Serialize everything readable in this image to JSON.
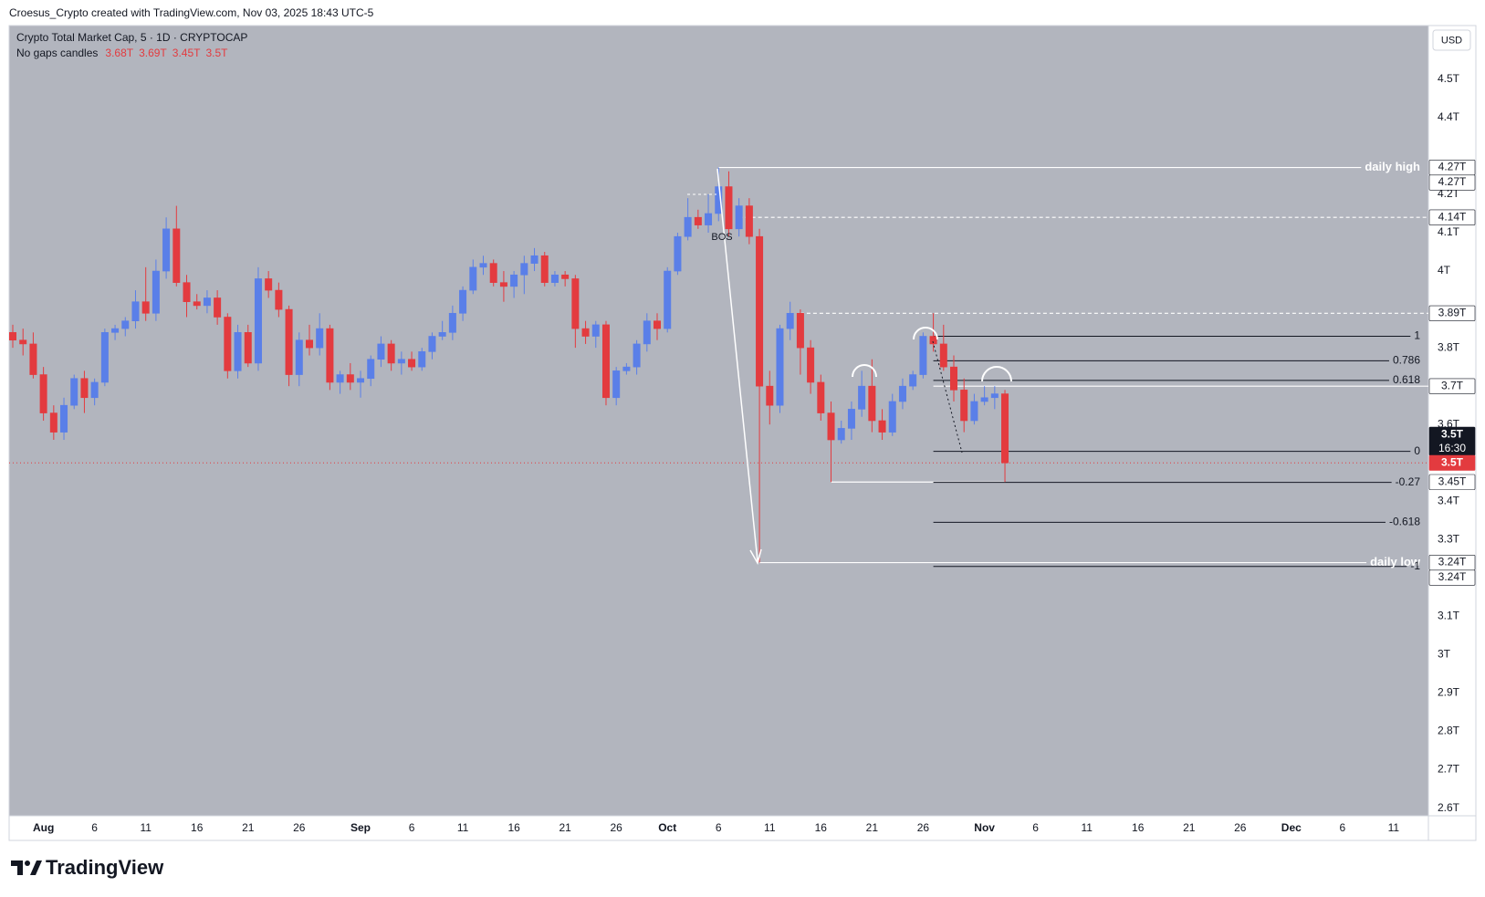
{
  "header": {
    "credit": "Croesus_Crypto created with TradingView.com, Nov 03, 2025 18:43 UTC-5",
    "logo": "TradingView"
  },
  "chart_data": {
    "type": "candlestick",
    "title": "Crypto Total Market Cap, 5 · 1D · CRYPTOCAP",
    "indicator": "No gaps candles",
    "ohlc_labels": [
      "3.68T",
      "3.69T",
      "3.45T",
      "3.5T"
    ],
    "currency": "USD",
    "up_color": "#5a7fe8",
    "down_color": "#e33b3f",
    "background": "#b2b5be",
    "grid": false,
    "xlim": [
      "2025-07-29",
      "2025-12-14"
    ],
    "xticks": [
      {
        "value": "2025-08-01",
        "label": "Aug"
      },
      {
        "value": "2025-08-06",
        "label": "6"
      },
      {
        "value": "2025-08-11",
        "label": "11"
      },
      {
        "value": "2025-08-16",
        "label": "16"
      },
      {
        "value": "2025-08-21",
        "label": "21"
      },
      {
        "value": "2025-08-26",
        "label": "26"
      },
      {
        "value": "2025-09-01",
        "label": "Sep"
      },
      {
        "value": "2025-09-06",
        "label": "6"
      },
      {
        "value": "2025-09-11",
        "label": "11"
      },
      {
        "value": "2025-09-16",
        "label": "16"
      },
      {
        "value": "2025-09-21",
        "label": "21"
      },
      {
        "value": "2025-09-26",
        "label": "26"
      },
      {
        "value": "2025-10-01",
        "label": "Oct"
      },
      {
        "value": "2025-10-06",
        "label": "6"
      },
      {
        "value": "2025-10-11",
        "label": "11"
      },
      {
        "value": "2025-10-16",
        "label": "16"
      },
      {
        "value": "2025-10-21",
        "label": "21"
      },
      {
        "value": "2025-10-26",
        "label": "26"
      },
      {
        "value": "2025-11-01",
        "label": "Nov"
      },
      {
        "value": "2025-11-06",
        "label": "6"
      },
      {
        "value": "2025-11-11",
        "label": "11"
      },
      {
        "value": "2025-11-16",
        "label": "16"
      },
      {
        "value": "2025-11-21",
        "label": "21"
      },
      {
        "value": "2025-11-26",
        "label": "26"
      },
      {
        "value": "2025-12-01",
        "label": "Dec"
      },
      {
        "value": "2025-12-06",
        "label": "6"
      },
      {
        "value": "2025-12-11",
        "label": "11"
      }
    ],
    "ylim": [
      2.58,
      4.64
    ],
    "yticks": [
      {
        "value": 4.5,
        "label": "4.5T"
      },
      {
        "value": 4.4,
        "label": "4.4T"
      },
      {
        "value": 4.2,
        "label": "4.2T"
      },
      {
        "value": 4.1,
        "label": "4.1T"
      },
      {
        "value": 4,
        "label": "4T"
      },
      {
        "value": 3.8,
        "label": "3.8T"
      },
      {
        "value": 3.6,
        "label": "3.6T"
      },
      {
        "value": 3.4,
        "label": "3.4T"
      },
      {
        "value": 3.3,
        "label": "3.3T"
      },
      {
        "value": 3.1,
        "label": "3.1T"
      },
      {
        "value": 3,
        "label": "3T"
      },
      {
        "value": 2.9,
        "label": "2.9T"
      },
      {
        "value": 2.8,
        "label": "2.8T"
      },
      {
        "value": 2.7,
        "label": "2.7T"
      },
      {
        "value": 2.6,
        "label": "2.6T"
      }
    ],
    "candles": [
      {
        "x": "2025-07-29",
        "open": 3.84,
        "high": 3.86,
        "low": 3.8,
        "close": 3.82
      },
      {
        "x": "2025-07-30",
        "open": 3.82,
        "high": 3.85,
        "low": 3.78,
        "close": 3.81
      },
      {
        "x": "2025-07-31",
        "open": 3.81,
        "high": 3.84,
        "low": 3.72,
        "close": 3.73
      },
      {
        "x": "2025-08-01",
        "open": 3.73,
        "high": 3.75,
        "low": 3.61,
        "close": 3.63
      },
      {
        "x": "2025-08-02",
        "open": 3.63,
        "high": 3.65,
        "low": 3.56,
        "close": 3.58
      },
      {
        "x": "2025-08-03",
        "open": 3.58,
        "high": 3.67,
        "low": 3.56,
        "close": 3.65
      },
      {
        "x": "2025-08-04",
        "open": 3.65,
        "high": 3.73,
        "low": 3.64,
        "close": 3.72
      },
      {
        "x": "2025-08-05",
        "open": 3.72,
        "high": 3.74,
        "low": 3.63,
        "close": 3.67
      },
      {
        "x": "2025-08-06",
        "open": 3.67,
        "high": 3.72,
        "low": 3.65,
        "close": 3.71
      },
      {
        "x": "2025-08-07",
        "open": 3.71,
        "high": 3.85,
        "low": 3.7,
        "close": 3.84
      },
      {
        "x": "2025-08-08",
        "open": 3.84,
        "high": 3.86,
        "low": 3.82,
        "close": 3.85
      },
      {
        "x": "2025-08-09",
        "open": 3.85,
        "high": 3.88,
        "low": 3.83,
        "close": 3.87
      },
      {
        "x": "2025-08-10",
        "open": 3.87,
        "high": 3.95,
        "low": 3.85,
        "close": 3.92
      },
      {
        "x": "2025-08-11",
        "open": 3.92,
        "high": 4.01,
        "low": 3.87,
        "close": 3.89
      },
      {
        "x": "2025-08-12",
        "open": 3.89,
        "high": 4.03,
        "low": 3.87,
        "close": 4.0
      },
      {
        "x": "2025-08-13",
        "open": 4.0,
        "high": 4.14,
        "low": 3.98,
        "close": 4.11
      },
      {
        "x": "2025-08-14",
        "open": 4.11,
        "high": 4.17,
        "low": 3.96,
        "close": 3.97
      },
      {
        "x": "2025-08-15",
        "open": 3.97,
        "high": 3.99,
        "low": 3.88,
        "close": 3.92
      },
      {
        "x": "2025-08-16",
        "open": 3.92,
        "high": 3.94,
        "low": 3.9,
        "close": 3.91
      },
      {
        "x": "2025-08-17",
        "open": 3.91,
        "high": 3.95,
        "low": 3.89,
        "close": 3.93
      },
      {
        "x": "2025-08-18",
        "open": 3.93,
        "high": 3.95,
        "low": 3.86,
        "close": 3.88
      },
      {
        "x": "2025-08-19",
        "open": 3.88,
        "high": 3.89,
        "low": 3.72,
        "close": 3.74
      },
      {
        "x": "2025-08-20",
        "open": 3.74,
        "high": 3.86,
        "low": 3.72,
        "close": 3.84
      },
      {
        "x": "2025-08-21",
        "open": 3.84,
        "high": 3.86,
        "low": 3.75,
        "close": 3.76
      },
      {
        "x": "2025-08-22",
        "open": 3.76,
        "high": 4.01,
        "low": 3.74,
        "close": 3.98
      },
      {
        "x": "2025-08-23",
        "open": 3.98,
        "high": 4.0,
        "low": 3.93,
        "close": 3.95
      },
      {
        "x": "2025-08-24",
        "open": 3.95,
        "high": 3.97,
        "low": 3.88,
        "close": 3.9
      },
      {
        "x": "2025-08-25",
        "open": 3.9,
        "high": 3.91,
        "low": 3.7,
        "close": 3.73
      },
      {
        "x": "2025-08-26",
        "open": 3.73,
        "high": 3.84,
        "low": 3.7,
        "close": 3.82
      },
      {
        "x": "2025-08-27",
        "open": 3.82,
        "high": 3.86,
        "low": 3.78,
        "close": 3.8
      },
      {
        "x": "2025-08-28",
        "open": 3.8,
        "high": 3.89,
        "low": 3.78,
        "close": 3.85
      },
      {
        "x": "2025-08-29",
        "open": 3.85,
        "high": 3.86,
        "low": 3.69,
        "close": 3.71
      },
      {
        "x": "2025-08-30",
        "open": 3.71,
        "high": 3.74,
        "low": 3.68,
        "close": 3.73
      },
      {
        "x": "2025-08-31",
        "open": 3.73,
        "high": 3.76,
        "low": 3.69,
        "close": 3.71
      },
      {
        "x": "2025-09-01",
        "open": 3.71,
        "high": 3.74,
        "low": 3.67,
        "close": 3.72
      },
      {
        "x": "2025-09-02",
        "open": 3.72,
        "high": 3.78,
        "low": 3.7,
        "close": 3.77
      },
      {
        "x": "2025-09-03",
        "open": 3.77,
        "high": 3.83,
        "low": 3.75,
        "close": 3.81
      },
      {
        "x": "2025-09-04",
        "open": 3.81,
        "high": 3.82,
        "low": 3.74,
        "close": 3.76
      },
      {
        "x": "2025-09-05",
        "open": 3.76,
        "high": 3.79,
        "low": 3.73,
        "close": 3.77
      },
      {
        "x": "2025-09-06",
        "open": 3.77,
        "high": 3.79,
        "low": 3.74,
        "close": 3.75
      },
      {
        "x": "2025-09-07",
        "open": 3.75,
        "high": 3.8,
        "low": 3.74,
        "close": 3.79
      },
      {
        "x": "2025-09-08",
        "open": 3.79,
        "high": 3.84,
        "low": 3.77,
        "close": 3.83
      },
      {
        "x": "2025-09-09",
        "open": 3.83,
        "high": 3.87,
        "low": 3.82,
        "close": 3.84
      },
      {
        "x": "2025-09-10",
        "open": 3.84,
        "high": 3.91,
        "low": 3.82,
        "close": 3.89
      },
      {
        "x": "2025-09-11",
        "open": 3.89,
        "high": 3.96,
        "low": 3.87,
        "close": 3.95
      },
      {
        "x": "2025-09-12",
        "open": 3.95,
        "high": 4.03,
        "low": 3.94,
        "close": 4.01
      },
      {
        "x": "2025-09-13",
        "open": 4.01,
        "high": 4.04,
        "low": 3.99,
        "close": 4.02
      },
      {
        "x": "2025-09-14",
        "open": 4.02,
        "high": 4.03,
        "low": 3.96,
        "close": 3.97
      },
      {
        "x": "2025-09-15",
        "open": 3.97,
        "high": 4.0,
        "low": 3.92,
        "close": 3.96
      },
      {
        "x": "2025-09-16",
        "open": 3.96,
        "high": 4.0,
        "low": 3.93,
        "close": 3.99
      },
      {
        "x": "2025-09-17",
        "open": 3.99,
        "high": 4.04,
        "low": 3.94,
        "close": 4.02
      },
      {
        "x": "2025-09-18",
        "open": 4.02,
        "high": 4.06,
        "low": 4.0,
        "close": 4.04
      },
      {
        "x": "2025-09-19",
        "open": 4.04,
        "high": 4.05,
        "low": 3.96,
        "close": 3.97
      },
      {
        "x": "2025-09-20",
        "open": 3.97,
        "high": 4.0,
        "low": 3.96,
        "close": 3.99
      },
      {
        "x": "2025-09-21",
        "open": 3.99,
        "high": 4.0,
        "low": 3.96,
        "close": 3.98
      },
      {
        "x": "2025-09-22",
        "open": 3.98,
        "high": 3.99,
        "low": 3.8,
        "close": 3.85
      },
      {
        "x": "2025-09-23",
        "open": 3.85,
        "high": 3.87,
        "low": 3.81,
        "close": 3.83
      },
      {
        "x": "2025-09-24",
        "open": 3.83,
        "high": 3.87,
        "low": 3.8,
        "close": 3.86
      },
      {
        "x": "2025-09-25",
        "open": 3.86,
        "high": 3.87,
        "low": 3.65,
        "close": 3.67
      },
      {
        "x": "2025-09-26",
        "open": 3.67,
        "high": 3.75,
        "low": 3.65,
        "close": 3.74
      },
      {
        "x": "2025-09-27",
        "open": 3.74,
        "high": 3.76,
        "low": 3.73,
        "close": 3.75
      },
      {
        "x": "2025-09-28",
        "open": 3.75,
        "high": 3.82,
        "low": 3.73,
        "close": 3.81
      },
      {
        "x": "2025-09-29",
        "open": 3.81,
        "high": 3.89,
        "low": 3.79,
        "close": 3.87
      },
      {
        "x": "2025-09-30",
        "open": 3.87,
        "high": 3.89,
        "low": 3.82,
        "close": 3.85
      },
      {
        "x": "2025-10-01",
        "open": 3.85,
        "high": 4.01,
        "low": 3.84,
        "close": 4.0
      },
      {
        "x": "2025-10-02",
        "open": 4.0,
        "high": 4.1,
        "low": 3.99,
        "close": 4.09
      },
      {
        "x": "2025-10-03",
        "open": 4.09,
        "high": 4.19,
        "low": 4.08,
        "close": 4.14
      },
      {
        "x": "2025-10-04",
        "open": 4.14,
        "high": 4.16,
        "low": 4.11,
        "close": 4.12
      },
      {
        "x": "2025-10-05",
        "open": 4.12,
        "high": 4.2,
        "low": 4.1,
        "close": 4.15
      },
      {
        "x": "2025-10-06",
        "open": 4.15,
        "high": 4.27,
        "low": 4.13,
        "close": 4.22
      },
      {
        "x": "2025-10-07",
        "open": 4.22,
        "high": 4.26,
        "low": 4.09,
        "close": 4.11
      },
      {
        "x": "2025-10-08",
        "open": 4.11,
        "high": 4.19,
        "low": 4.09,
        "close": 4.17
      },
      {
        "x": "2025-10-09",
        "open": 4.17,
        "high": 4.19,
        "low": 4.07,
        "close": 4.09
      },
      {
        "x": "2025-10-10",
        "open": 4.09,
        "high": 4.11,
        "low": 3.24,
        "close": 3.7
      },
      {
        "x": "2025-10-11",
        "open": 3.7,
        "high": 3.74,
        "low": 3.6,
        "close": 3.65
      },
      {
        "x": "2025-10-12",
        "open": 3.65,
        "high": 3.86,
        "low": 3.63,
        "close": 3.85
      },
      {
        "x": "2025-10-13",
        "open": 3.85,
        "high": 3.92,
        "low": 3.82,
        "close": 3.89
      },
      {
        "x": "2025-10-14",
        "open": 3.89,
        "high": 3.9,
        "low": 3.73,
        "close": 3.8
      },
      {
        "x": "2025-10-15",
        "open": 3.8,
        "high": 3.82,
        "low": 3.68,
        "close": 3.71
      },
      {
        "x": "2025-10-16",
        "open": 3.71,
        "high": 3.73,
        "low": 3.61,
        "close": 3.63
      },
      {
        "x": "2025-10-17",
        "open": 3.63,
        "high": 3.66,
        "low": 3.45,
        "close": 3.56
      },
      {
        "x": "2025-10-18",
        "open": 3.56,
        "high": 3.61,
        "low": 3.55,
        "close": 3.59
      },
      {
        "x": "2025-10-19",
        "open": 3.59,
        "high": 3.66,
        "low": 3.56,
        "close": 3.64
      },
      {
        "x": "2025-10-20",
        "open": 3.64,
        "high": 3.74,
        "low": 3.62,
        "close": 3.7
      },
      {
        "x": "2025-10-21",
        "open": 3.7,
        "high": 3.77,
        "low": 3.58,
        "close": 3.61
      },
      {
        "x": "2025-10-22",
        "open": 3.61,
        "high": 3.64,
        "low": 3.56,
        "close": 3.58
      },
      {
        "x": "2025-10-23",
        "open": 3.58,
        "high": 3.68,
        "low": 3.57,
        "close": 3.66
      },
      {
        "x": "2025-10-24",
        "open": 3.66,
        "high": 3.72,
        "low": 3.64,
        "close": 3.7
      },
      {
        "x": "2025-10-25",
        "open": 3.7,
        "high": 3.74,
        "low": 3.69,
        "close": 3.73
      },
      {
        "x": "2025-10-26",
        "open": 3.73,
        "high": 3.84,
        "low": 3.72,
        "close": 3.83
      },
      {
        "x": "2025-10-27",
        "open": 3.83,
        "high": 3.89,
        "low": 3.79,
        "close": 3.81
      },
      {
        "x": "2025-10-28",
        "open": 3.81,
        "high": 3.86,
        "low": 3.74,
        "close": 3.75
      },
      {
        "x": "2025-10-29",
        "open": 3.75,
        "high": 3.78,
        "low": 3.66,
        "close": 3.69
      },
      {
        "x": "2025-10-30",
        "open": 3.69,
        "high": 3.72,
        "low": 3.58,
        "close": 3.61
      },
      {
        "x": "2025-10-31",
        "open": 3.61,
        "high": 3.68,
        "low": 3.6,
        "close": 3.66
      },
      {
        "x": "2025-11-01",
        "open": 3.66,
        "high": 3.7,
        "low": 3.65,
        "close": 3.67
      },
      {
        "x": "2025-11-02",
        "open": 3.67,
        "high": 3.7,
        "low": 3.64,
        "close": 3.68
      },
      {
        "x": "2025-11-03",
        "open": 3.68,
        "high": 3.69,
        "low": 3.45,
        "close": 3.5
      }
    ],
    "lines": [
      {
        "price": 4.27,
        "from": "2025-10-06",
        "style": "solid",
        "label": "daily high"
      },
      {
        "price": 4.14,
        "from": "2025-10-08",
        "style": "dashed"
      },
      {
        "price": 3.89,
        "from": "2025-10-14",
        "style": "dashed"
      },
      {
        "price": 3.7,
        "from": "2025-10-27",
        "style": "solid"
      },
      {
        "price": 3.45,
        "from": "2025-10-17",
        "to": "2025-11-03",
        "style": "solid"
      },
      {
        "price": 3.24,
        "from": "2025-10-10",
        "style": "solid",
        "label": "daily low"
      }
    ],
    "fib": {
      "from": "2025-10-27",
      "levels": [
        {
          "level": 1,
          "price": 3.83
        },
        {
          "level": 0.786,
          "price": 3.766
        },
        {
          "level": 0.618,
          "price": 3.715
        },
        {
          "level": 0,
          "price": 3.53
        },
        {
          "level": -0.27,
          "price": 3.449
        },
        {
          "level": -0.618,
          "price": 3.345
        },
        {
          "level": -1,
          "price": 3.23
        }
      ]
    },
    "bos_label": "BOS",
    "price_labels": [
      {
        "value": 4.27,
        "label": "4.27T",
        "style": "light"
      },
      {
        "value": 4.27,
        "label": "4.27T",
        "style": "light"
      },
      {
        "value": 4.14,
        "label": "4.14T",
        "style": "light"
      },
      {
        "value": 3.89,
        "label": "3.89T",
        "style": "light"
      },
      {
        "value": 3.7,
        "label": "3.7T",
        "style": "light"
      },
      {
        "value": 3.5,
        "label": "3.5T",
        "style": "dark",
        "countdown": "16:30"
      },
      {
        "value": 3.5,
        "label": "3.5T",
        "style": "red"
      },
      {
        "value": 3.45,
        "label": "3.45T",
        "style": "light"
      },
      {
        "value": 3.24,
        "label": "3.24T",
        "style": "light"
      },
      {
        "value": 3.24,
        "label": "3.24T",
        "style": "light"
      }
    ]
  }
}
